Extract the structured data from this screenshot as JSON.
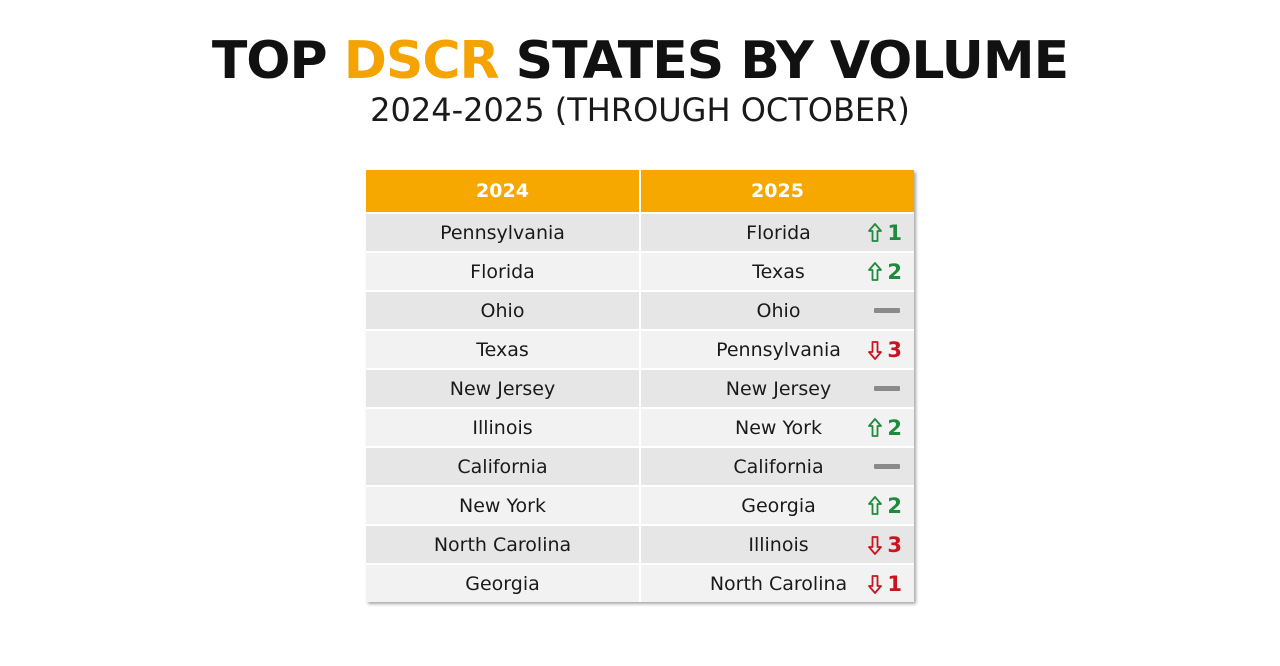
{
  "title": {
    "part1": "TOP ",
    "accent": "DSCR",
    "part2": " STATES BY VOLUME",
    "accent_color": "#f5a300"
  },
  "subtitle": "2024-2025 (THROUGH OCTOBER)",
  "table": {
    "headers": [
      "2024",
      "2025"
    ],
    "header_color": "#f7a800",
    "up_color": "#1e8a3c",
    "down_color": "#c8141e",
    "rows": [
      {
        "y2024": "Pennsylvania",
        "y2025": "Florida",
        "direction": "up",
        "change": "1",
        "icon": "up-arrow-icon"
      },
      {
        "y2024": "Florida",
        "y2025": "Texas",
        "direction": "up",
        "change": "2",
        "icon": "up-arrow-icon"
      },
      {
        "y2024": "Ohio",
        "y2025": "Ohio",
        "direction": "same",
        "change": "",
        "icon": "dash-icon"
      },
      {
        "y2024": "Texas",
        "y2025": "Pennsylvania",
        "direction": "down",
        "change": "3",
        "icon": "down-arrow-icon"
      },
      {
        "y2024": "New Jersey",
        "y2025": "New Jersey",
        "direction": "same",
        "change": "",
        "icon": "dash-icon"
      },
      {
        "y2024": "Illinois",
        "y2025": "New York",
        "direction": "up",
        "change": "2",
        "icon": "up-arrow-icon"
      },
      {
        "y2024": "California",
        "y2025": "California",
        "direction": "same",
        "change": "",
        "icon": "dash-icon"
      },
      {
        "y2024": "New York",
        "y2025": "Georgia",
        "direction": "up",
        "change": "2",
        "icon": "up-arrow-icon"
      },
      {
        "y2024": "North Carolina",
        "y2025": "Illinois",
        "direction": "down",
        "change": "3",
        "icon": "down-arrow-icon"
      },
      {
        "y2024": "Georgia",
        "y2025": "North Carolina",
        "direction": "down",
        "change": "1",
        "icon": "down-arrow-icon"
      }
    ]
  }
}
